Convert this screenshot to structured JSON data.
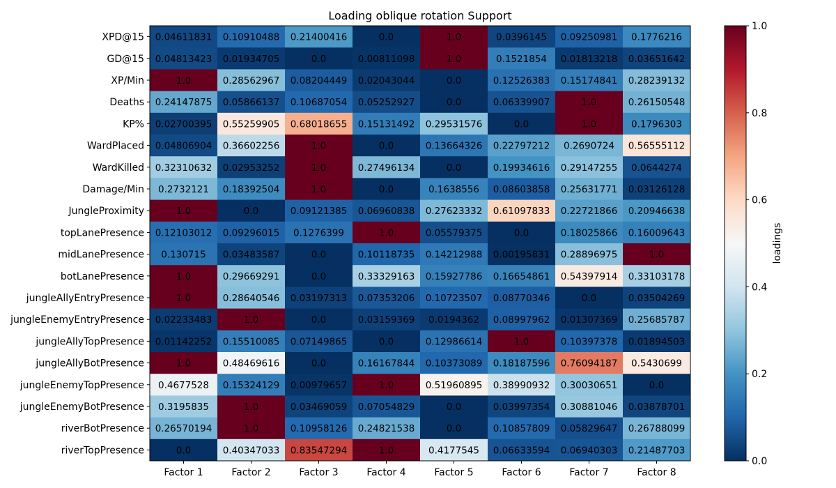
{
  "chart_data": {
    "type": "heatmap",
    "title": "Loading oblique rotation Support",
    "columns": [
      "Factor 1",
      "Factor 2",
      "Factor 3",
      "Factor 4",
      "Factor 5",
      "Factor 6",
      "Factor 7",
      "Factor 8"
    ],
    "rows": [
      "XPD@15",
      "GD@15",
      "XP/Min",
      "Deaths",
      "KP%",
      "WardPlaced",
      "WardKilled",
      "Damage/Min",
      "JungleProximity",
      "topLanePresence",
      "midLanePresence",
      "botLanePresence",
      "jungleAllyEntryPresence",
      "jungleEnemyEntryPresence",
      "jungleAllyTopPresence",
      "jungleAllyBotPresence",
      "jungleEnemyTopPresence",
      "jungleEnemyBotPresence",
      "riverBotPresence",
      "riverTopPresence"
    ],
    "values": [
      [
        "0.04611831",
        "0.10910488",
        "0.21400416",
        "0.0",
        "1.0",
        "0.0396145",
        "0.09250981",
        "0.1776216"
      ],
      [
        "0.04813423",
        "0.01934705",
        "0.0",
        "0.00811098",
        "1.0",
        "0.1521854",
        "0.01813218",
        "0.03651642"
      ],
      [
        "1.0",
        "0.28562967",
        "0.08204449",
        "0.02043044",
        "0.0",
        "0.12526383",
        "0.15174841",
        "0.28239132"
      ],
      [
        "0.24147875",
        "0.05866137",
        "0.10687054",
        "0.05252927",
        "0.0",
        "0.06339907",
        "1.0",
        "0.26150548"
      ],
      [
        "0.02700395",
        "0.55259905",
        "0.68018655",
        "0.15131492",
        "0.29531576",
        "0.0",
        "1.0",
        "0.1796303"
      ],
      [
        "0.04806904",
        "0.36602256",
        "1.0",
        "0.0",
        "0.13664326",
        "0.22797212",
        "0.2690724",
        "0.56555112"
      ],
      [
        "0.32310632",
        "0.02953252",
        "1.0",
        "0.27496134",
        "0.0",
        "0.19934616",
        "0.29147255",
        "0.0644274"
      ],
      [
        "0.2732121",
        "0.18392504",
        "1.0",
        "0.0",
        "0.1638556",
        "0.08603858",
        "0.25631771",
        "0.03126128"
      ],
      [
        "1.0",
        "0.0",
        "0.09121385",
        "0.06960838",
        "0.27623332",
        "0.61097833",
        "0.22721866",
        "0.20946638"
      ],
      [
        "0.12103012",
        "0.09296015",
        "0.1276399",
        "1.0",
        "0.05579375",
        "0.0",
        "0.18025866",
        "0.16009643"
      ],
      [
        "0.130715",
        "0.03483587",
        "0.0",
        "0.10118735",
        "0.14212988",
        "0.00195831",
        "0.28896975",
        "1.0"
      ],
      [
        "1.0",
        "0.29669291",
        "0.0",
        "0.33329163",
        "0.15927786",
        "0.16654861",
        "0.54397914",
        "0.33103178"
      ],
      [
        "1.0",
        "0.28640546",
        "0.03197313",
        "0.07353206",
        "0.10723507",
        "0.08770346",
        "0.0",
        "0.03504269"
      ],
      [
        "0.02233483",
        "1.0",
        "0.0",
        "0.03159369",
        "0.0194362",
        "0.08997962",
        "0.01307369",
        "0.25685787"
      ],
      [
        "0.01142252",
        "0.15510085",
        "0.07149865",
        "0.0",
        "0.12986614",
        "1.0",
        "0.10397378",
        "0.01894503"
      ],
      [
        "1.0",
        "0.48469616",
        "0.0",
        "0.16167844",
        "0.10373089",
        "0.18187596",
        "0.76094187",
        "0.5430699"
      ],
      [
        "0.4677528",
        "0.15324129",
        "0.00979657",
        "1.0",
        "0.51960895",
        "0.38990932",
        "0.30030651",
        "0.0"
      ],
      [
        "0.3195835",
        "1.0",
        "0.03469059",
        "0.07054829",
        "0.0",
        "0.03997354",
        "0.30881046",
        "0.03878701"
      ],
      [
        "0.26570194",
        "1.0",
        "0.10958126",
        "0.24821538",
        "0.0",
        "0.10857809",
        "0.05829647",
        "0.26788099"
      ],
      [
        "0.0",
        "0.40347033",
        "0.83547294",
        "1.0",
        "0.4177545",
        "0.06633594",
        "0.06940303",
        "0.21487703"
      ]
    ],
    "colormap": "RdBu_r",
    "vmin": 0,
    "vmax": 1,
    "colorbar": {
      "label": "loadings",
      "ticks": [
        "0.0",
        "0.2",
        "0.4",
        "0.6",
        "0.8",
        "1.0"
      ],
      "tick_values": [
        0,
        0.2,
        0.4,
        0.6,
        0.8,
        1.0
      ]
    }
  }
}
